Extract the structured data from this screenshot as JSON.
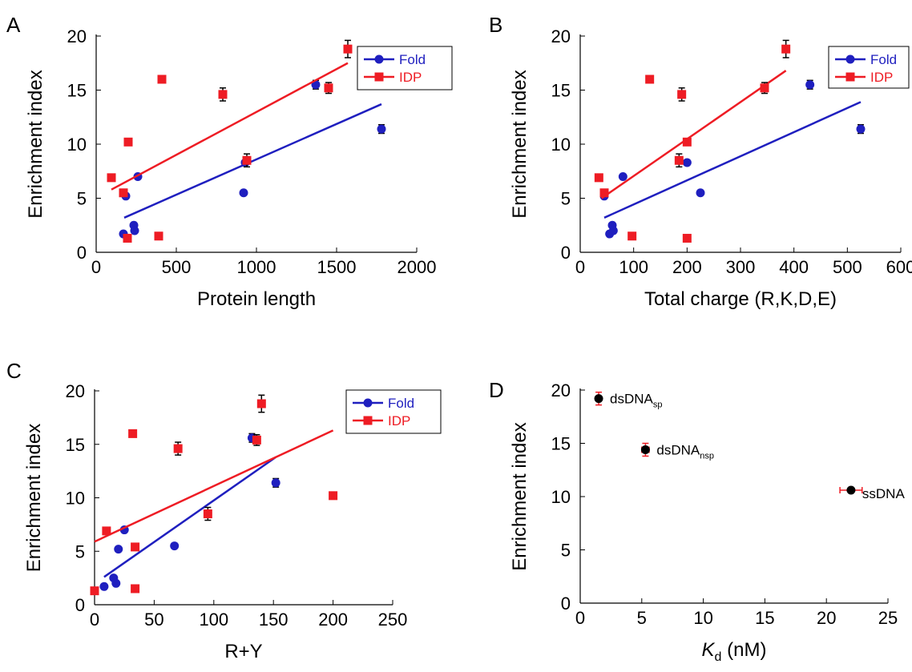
{
  "colors": {
    "fold": "#1f1fbf",
    "idp": "#ee1c24",
    "black": "#000000",
    "errbar": "#ee1c24"
  },
  "chart_data": [
    {
      "panel": "A",
      "type": "scatter",
      "xlabel": "Protein length",
      "ylabel": "Enrichment index",
      "xlim": [
        0,
        2000
      ],
      "ylim": [
        0,
        20
      ],
      "xticks": [
        "0",
        "500",
        "1000",
        "1500",
        "2000"
      ],
      "yticks": [
        "0",
        "5",
        "10",
        "15",
        "20"
      ],
      "legend": "top-right",
      "series": [
        {
          "name": "Fold",
          "marker": "circle",
          "points": [
            [
              170,
              1.7
            ],
            [
              185,
              5.2
            ],
            [
              235,
              2.5
            ],
            [
              240,
              2.0
            ],
            [
              260,
              7.0
            ],
            [
              920,
              5.5
            ],
            [
              930,
              8.3
            ],
            [
              1370,
              15.5
            ],
            [
              1780,
              11.4
            ]
          ],
          "errors": [
            0,
            0,
            0,
            0,
            0,
            0,
            0,
            0.4,
            0.4
          ],
          "fit": [
            [
              175,
              3.2
            ],
            [
              1780,
              13.7
            ]
          ]
        },
        {
          "name": "IDP",
          "marker": "square",
          "points": [
            [
              95,
              6.9
            ],
            [
              170,
              5.5
            ],
            [
              195,
              1.3
            ],
            [
              200,
              10.2
            ],
            [
              390,
              1.5
            ],
            [
              410,
              16.0
            ],
            [
              790,
              14.6
            ],
            [
              940,
              8.5
            ],
            [
              1450,
              15.2
            ],
            [
              1570,
              18.8
            ]
          ],
          "errors": [
            0,
            0,
            0,
            0,
            0,
            0.3,
            0.6,
            0.6,
            0.5,
            0.8
          ],
          "fit": [
            [
              95,
              5.8
            ],
            [
              1570,
              17.5
            ]
          ]
        }
      ]
    },
    {
      "panel": "B",
      "type": "scatter",
      "xlabel": "Total charge (R,K,D,E)",
      "ylabel": "Enrichment index",
      "xlim": [
        0,
        600
      ],
      "ylim": [
        0,
        20
      ],
      "xticks": [
        "0",
        "100",
        "200",
        "300",
        "400",
        "500",
        "600"
      ],
      "yticks": [
        "0",
        "5",
        "10",
        "15",
        "20"
      ],
      "legend": "top-right",
      "series": [
        {
          "name": "Fold",
          "marker": "circle",
          "points": [
            [
              45,
              5.2
            ],
            [
              55,
              1.7
            ],
            [
              60,
              2.5
            ],
            [
              62,
              2.0
            ],
            [
              80,
              7.0
            ],
            [
              225,
              5.5
            ],
            [
              200,
              8.3
            ],
            [
              430,
              15.5
            ],
            [
              525,
              11.4
            ]
          ],
          "errors": [
            0,
            0,
            0,
            0,
            0,
            0,
            0,
            0.4,
            0.4
          ],
          "fit": [
            [
              45,
              3.2
            ],
            [
              525,
              13.9
            ]
          ]
        },
        {
          "name": "IDP",
          "marker": "square",
          "points": [
            [
              35,
              6.9
            ],
            [
              45,
              5.5
            ],
            [
              97,
              1.5
            ],
            [
              130,
              16.0
            ],
            [
              185,
              8.5
            ],
            [
              190,
              14.6
            ],
            [
              200,
              1.3
            ],
            [
              200,
              10.2
            ],
            [
              345,
              15.2
            ],
            [
              385,
              18.8
            ]
          ],
          "errors": [
            0,
            0,
            0,
            0.3,
            0.6,
            0.6,
            0,
            0,
            0.5,
            0.8
          ],
          "fit": [
            [
              40,
              5.0
            ],
            [
              385,
              16.8
            ]
          ]
        }
      ]
    },
    {
      "panel": "C",
      "type": "scatter",
      "xlabel": "R+Y",
      "ylabel": "Enrichment index",
      "xlim": [
        0,
        250
      ],
      "ylim": [
        0,
        20
      ],
      "xticks": [
        "0",
        "50",
        "100",
        "150",
        "200",
        "250"
      ],
      "yticks": [
        "0",
        "5",
        "10",
        "15",
        "20"
      ],
      "legend": "top-right",
      "series": [
        {
          "name": "Fold",
          "marker": "circle",
          "points": [
            [
              8,
              1.7
            ],
            [
              16,
              2.5
            ],
            [
              18,
              2.0
            ],
            [
              20,
              5.2
            ],
            [
              25,
              7.0
            ],
            [
              67,
              5.5
            ],
            [
              132,
              15.6
            ],
            [
              152,
              11.4
            ]
          ],
          "errors": [
            0,
            0,
            0,
            0,
            0,
            0,
            0.4,
            0.4
          ],
          "fit": [
            [
              8,
              2.6
            ],
            [
              152,
              13.8
            ]
          ]
        },
        {
          "name": "IDP",
          "marker": "square",
          "points": [
            [
              0,
              1.3
            ],
            [
              10,
              6.9
            ],
            [
              32,
              16.0
            ],
            [
              34,
              5.4
            ],
            [
              34,
              1.5
            ],
            [
              70,
              14.6
            ],
            [
              95,
              8.5
            ],
            [
              136,
              15.4
            ],
            [
              140,
              18.8
            ],
            [
              200,
              10.2
            ]
          ],
          "errors": [
            0,
            0,
            0.3,
            0,
            0,
            0.6,
            0.6,
            0.5,
            0.8,
            0
          ],
          "fit": [
            [
              0,
              5.9
            ],
            [
              200,
              16.3
            ]
          ]
        }
      ]
    },
    {
      "panel": "D",
      "type": "scatter",
      "xlabel": "K",
      "xlabel_sub": "d",
      "xlabel_unit": " (nM)",
      "ylabel": "Enrichment index",
      "xlim": [
        0,
        25
      ],
      "ylim": [
        0,
        20
      ],
      "xticks": [
        "0",
        "5",
        "10",
        "15",
        "20",
        "25"
      ],
      "yticks": [
        "0",
        "5",
        "10",
        "15",
        "20"
      ],
      "series": [
        {
          "name": "",
          "marker": "circle",
          "points": [
            {
              "x": 1.5,
              "y": 19.2,
              "xerr": 0.0,
              "yerr": 0.6,
              "label": "dsDNA",
              "sub": "sp"
            },
            {
              "x": 5.3,
              "y": 14.4,
              "xerr": 0.3,
              "yerr": 0.6,
              "label": "dsDNA",
              "sub": "nsp"
            },
            {
              "x": 22.0,
              "y": 10.6,
              "xerr": 0.9,
              "yerr": 0.2,
              "label": "ssDNA",
              "sub": ""
            }
          ]
        }
      ]
    }
  ]
}
